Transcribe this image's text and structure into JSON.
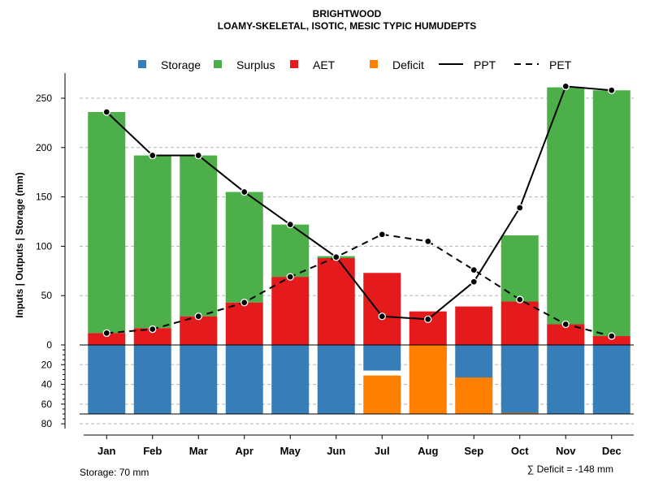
{
  "chart_data": {
    "type": "bar",
    "title": "BRIGHTWOOD",
    "subtitle": "LOAMY-SKELETAL, ISOTIC, MESIC TYPIC HUMUDEPTS",
    "ylabel": "Inputs | Outputs | Storage     (mm)",
    "categories": [
      "Jan",
      "Feb",
      "Mar",
      "Apr",
      "May",
      "Jun",
      "Jul",
      "Aug",
      "Sep",
      "Oct",
      "Nov",
      "Dec"
    ],
    "ylim_upper": [
      0,
      280
    ],
    "ylim_lower": [
      0,
      80
    ],
    "upper_ticks": [
      "250",
      "200",
      "150",
      "100",
      "50",
      "0"
    ],
    "upper_tick_values": [
      250,
      200,
      150,
      100,
      50,
      0
    ],
    "lower_ticks": [
      "20",
      "40",
      "60",
      "80"
    ],
    "lower_tick_values": [
      20,
      40,
      60,
      80
    ],
    "series": [
      {
        "name": "Storage",
        "color": "#377EB8",
        "values": [
          70,
          70,
          70,
          70,
          70,
          70,
          26,
          17,
          43,
          70,
          70,
          70
        ]
      },
      {
        "name": "Surplus",
        "color": "#4DAF4A",
        "values": [
          224,
          175,
          163,
          112,
          53,
          2,
          0,
          0,
          0,
          67,
          240,
          249
        ]
      },
      {
        "name": "AET",
        "color": "#E41A1C",
        "values": [
          12,
          17,
          29,
          43,
          69,
          88,
          73,
          34,
          39,
          44,
          21,
          9
        ]
      },
      {
        "name": "Deficit",
        "color": "#FF7F00",
        "values": [
          0,
          0,
          0,
          0,
          0,
          0,
          39,
          70,
          37,
          1,
          0,
          0
        ]
      },
      {
        "name": "PPT",
        "color": "#000000",
        "values": [
          236,
          192,
          192,
          155,
          122,
          89,
          29,
          26,
          64,
          139,
          262,
          258
        ]
      },
      {
        "name": "PET",
        "color": "#000000",
        "values": [
          12,
          16,
          29,
          43,
          69,
          89,
          112,
          105,
          76,
          46,
          21,
          9
        ]
      }
    ],
    "legend": {
      "position": "top",
      "items": [
        {
          "label": "Storage",
          "kind": "box",
          "color": "#377EB8"
        },
        {
          "label": "Surplus",
          "kind": "box",
          "color": "#4DAF4A"
        },
        {
          "label": "AET",
          "kind": "box",
          "color": "#E41A1C"
        },
        {
          "label": "Deficit",
          "kind": "box",
          "color": "#FF7F00"
        },
        {
          "label": "PPT",
          "kind": "solid"
        },
        {
          "label": "PET",
          "kind": "dashed"
        }
      ]
    },
    "storage_note": "Storage: 70 mm",
    "deficit_note": "∑ Deficit = -148 mm",
    "grid": true
  }
}
